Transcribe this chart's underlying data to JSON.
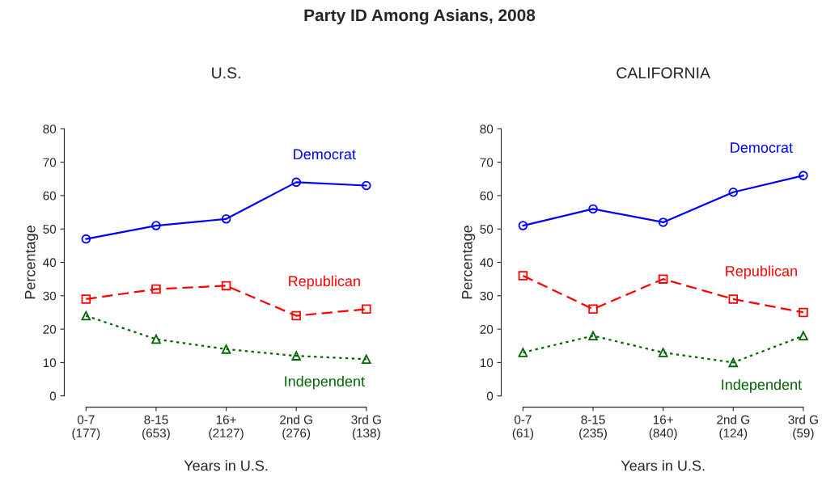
{
  "chart_data": [
    {
      "type": "line",
      "title": "U.S.",
      "xlabel": "Years in U.S.",
      "ylabel": "Percentage",
      "annotations": [
        "Party ID Among Asians, 2008"
      ],
      "categories": [
        "0-7\n(177)",
        "8-15\n(653)",
        "16+\n(2127)",
        "2nd G\n(276)",
        "3rd G\n(138)"
      ],
      "ylim": [
        0,
        80
      ],
      "yticks": [
        0,
        10,
        20,
        30,
        40,
        50,
        60,
        70,
        80
      ],
      "grid": false,
      "legend": false,
      "series": [
        {
          "name": "Democrat",
          "color": "#0000ff",
          "marker": "circle",
          "line_style": "solid",
          "values": [
            47,
            51,
            53,
            64,
            63
          ]
        },
        {
          "name": "Republican",
          "color": "#ff0000",
          "marker": "square",
          "line_style": "dashed",
          "values": [
            29,
            32,
            33,
            24,
            26
          ]
        },
        {
          "name": "Independent",
          "color": "#006400",
          "marker": "triangle",
          "line_style": "dotted",
          "values": [
            24,
            17,
            14,
            12,
            11
          ]
        }
      ]
    },
    {
      "type": "line",
      "title": "CALIFORNIA",
      "xlabel": "Years in U.S.",
      "ylabel": "Percentage",
      "categories": [
        "0-7\n(61)",
        "8-15\n(235)",
        "16+\n(840)",
        "2nd G\n(124)",
        "3rd G\n(59)"
      ],
      "ylim": [
        0,
        80
      ],
      "yticks": [
        0,
        10,
        20,
        30,
        40,
        50,
        60,
        70,
        80
      ],
      "grid": false,
      "legend": false,
      "series": [
        {
          "name": "Democrat",
          "color": "#0000ff",
          "marker": "circle",
          "line_style": "solid",
          "values": [
            51,
            56,
            52,
            61,
            66
          ]
        },
        {
          "name": "Republican",
          "color": "#ff0000",
          "marker": "square",
          "line_style": "dashed",
          "values": [
            36,
            26,
            35,
            29,
            25
          ]
        },
        {
          "name": "Independent",
          "color": "#006400",
          "marker": "triangle",
          "line_style": "dotted",
          "values": [
            13,
            18,
            13,
            10,
            18
          ]
        }
      ]
    }
  ]
}
